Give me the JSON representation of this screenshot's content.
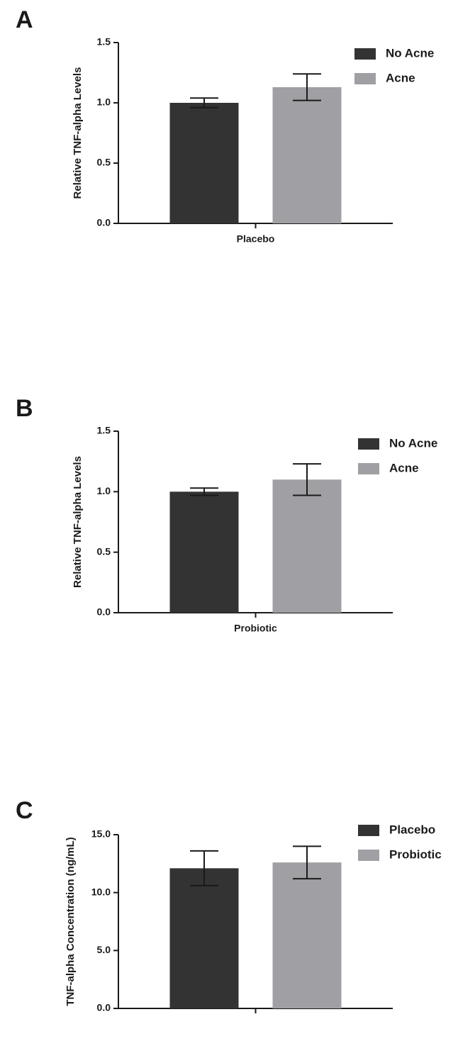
{
  "chart_data": [
    {
      "type": "bar",
      "panel_label": "A",
      "y_label": "Relative TNF-alpha Levels",
      "categories": [
        "Placebo"
      ],
      "series": [
        {
          "name": "No Acne",
          "color": "#333333",
          "values": [
            1.0
          ],
          "errors": [
            0.04
          ]
        },
        {
          "name": "Acne",
          "color": "#a0a0a4",
          "values": [
            1.13
          ],
          "errors": [
            0.11
          ]
        }
      ],
      "ylim": [
        0,
        1.5
      ],
      "yticks": [
        {
          "value": 0,
          "label": "0.0"
        },
        0.5,
        {
          "value": 1,
          "label": "1.0"
        },
        1.5
      ],
      "legend": "top-right"
    },
    {
      "type": "bar",
      "panel_label": "B",
      "y_label": "Relative TNF-alpha Levels",
      "categories": [
        "Probiotic"
      ],
      "series": [
        {
          "name": "No Acne",
          "color": "#333333",
          "values": [
            1.0
          ],
          "errors": [
            0.03
          ]
        },
        {
          "name": "Acne",
          "color": "#a0a0a4",
          "values": [
            1.1
          ],
          "errors": [
            0.13
          ]
        }
      ],
      "ylim": [
        0,
        1.5
      ],
      "yticks": [
        {
          "value": 0,
          "label": "0.0"
        },
        0.5,
        {
          "value": 1,
          "label": "1.0"
        },
        1.5
      ],
      "legend": "top-right"
    },
    {
      "type": "bar",
      "panel_label": "C",
      "y_label": "TNF-alpha Concentration (ng/mL)",
      "categories": [
        null
      ],
      "series": [
        {
          "name": "Placebo",
          "color": "#333333",
          "values": [
            12.1
          ],
          "errors": [
            1.5
          ]
        },
        {
          "name": "Probiotic",
          "color": "#a0a0a4",
          "values": [
            12.6
          ],
          "errors": [
            1.4
          ]
        }
      ],
      "ylim": [
        0,
        15
      ],
      "yticks": [
        {
          "value": 0,
          "label": "0.0"
        },
        {
          "value": 5,
          "label": "5.0"
        },
        {
          "value": 10,
          "label": "10.0"
        },
        {
          "value": 15,
          "label": "15.0"
        }
      ],
      "legend": "top-right"
    }
  ]
}
